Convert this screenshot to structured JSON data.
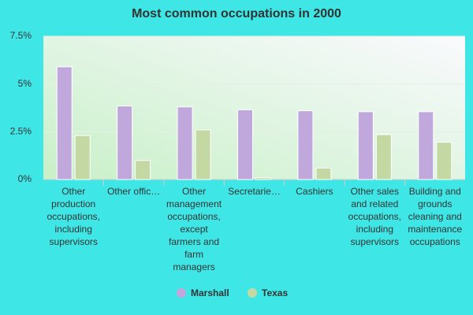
{
  "chart_data": {
    "type": "bar",
    "title": "Most common occupations in 2000",
    "categories": [
      "Other production occupations, including supervisors",
      "Other offic…",
      "Other management occupations, except farmers and farm managers",
      "Secretarie…",
      "Cashiers",
      "Other sales and related occupations, including supervisors",
      "Building and grounds cleaning and maintenance occupations"
    ],
    "series": [
      {
        "name": "Marshall",
        "color": "#c0a8dc",
        "values": [
          5.9,
          3.85,
          3.8,
          3.65,
          3.6,
          3.55,
          3.55
        ]
      },
      {
        "name": "Texas",
        "color": "#c4d8a4",
        "values": [
          2.3,
          1.0,
          2.6,
          0.1,
          0.6,
          2.35,
          1.95
        ]
      }
    ],
    "ylim": [
      0,
      7.5
    ],
    "yticks": [
      {
        "value": 0,
        "label": "0%"
      },
      {
        "value": 2.5,
        "label": "2.5%"
      },
      {
        "value": 5,
        "label": "5%"
      },
      {
        "value": 7.5,
        "label": "7.5%"
      }
    ],
    "grid": true
  }
}
